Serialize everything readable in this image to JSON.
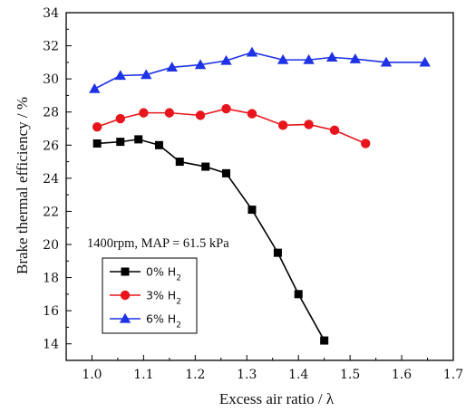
{
  "chart_data": {
    "type": "line",
    "xlabel": "Excess air ratio / λ",
    "ylabel": "Brake thermal efficiency / %",
    "xlim": [
      0.95,
      1.7
    ],
    "ylim": [
      13,
      34
    ],
    "xticks": [
      "1.0",
      "1.1",
      "1.2",
      "1.3",
      "1.4",
      "1.5",
      "1.6",
      "1.7"
    ],
    "yticks": [
      "14",
      "16",
      "18",
      "20",
      "22",
      "24",
      "26",
      "28",
      "30",
      "32",
      "34"
    ],
    "annotation": "1400rpm, MAP = 61.5 kPa",
    "legend_position": "lower-left",
    "grid": false,
    "series": [
      {
        "name": "0% H",
        "name_sub": "2",
        "color": "#000000",
        "marker": "square",
        "x": [
          1.01,
          1.055,
          1.09,
          1.13,
          1.17,
          1.22,
          1.26,
          1.31,
          1.36,
          1.4,
          1.45
        ],
        "y": [
          26.1,
          26.2,
          26.35,
          26.0,
          25.0,
          24.7,
          24.3,
          22.1,
          19.5,
          17.0,
          14.2
        ]
      },
      {
        "name": "3% H",
        "name_sub": "2",
        "color": "#e8161c",
        "marker": "circle",
        "x": [
          1.01,
          1.055,
          1.1,
          1.15,
          1.21,
          1.26,
          1.31,
          1.37,
          1.42,
          1.47,
          1.53
        ],
        "y": [
          27.1,
          27.6,
          27.95,
          27.95,
          27.8,
          28.2,
          27.9,
          27.2,
          27.25,
          26.9,
          26.1
        ]
      },
      {
        "name": "6% H",
        "name_sub": "2",
        "color": "#1f33e6",
        "marker": "triangle",
        "x": [
          1.005,
          1.055,
          1.105,
          1.155,
          1.21,
          1.26,
          1.31,
          1.37,
          1.42,
          1.465,
          1.51,
          1.57,
          1.645
        ],
        "y": [
          29.4,
          30.2,
          30.25,
          30.7,
          30.85,
          31.1,
          31.6,
          31.15,
          31.15,
          31.3,
          31.2,
          31.0,
          31.0
        ]
      }
    ]
  }
}
